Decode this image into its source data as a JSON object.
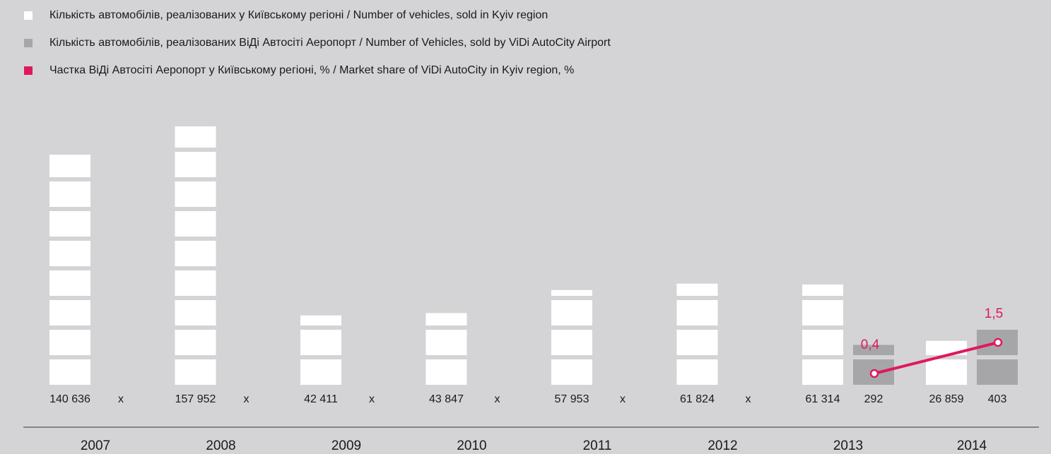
{
  "chart_data": {
    "type": "bar",
    "categories": [
      "2007",
      "2008",
      "2009",
      "2010",
      "2011",
      "2012",
      "2013",
      "2014"
    ],
    "series": [
      {
        "name": "Кількість автомобілів, реалізованих у Київському регіоні / Number of vehicles, sold in Kyiv region",
        "color": "#ffffff",
        "values": [
          140636,
          157952,
          42411,
          43847,
          57953,
          61824,
          61314,
          26859
        ],
        "value_labels": [
          "140 636",
          "157 952",
          "42 411",
          "43 847",
          "57 953",
          "61 824",
          "61 314",
          "26 859"
        ]
      },
      {
        "name": "Кількість автомобілів, реалізованих ВіДі Автосіті Аеропорт / Number of Vehicles, sold by ViDi AutoCity Airport",
        "color": "#a6a6a8",
        "values": [
          null,
          null,
          null,
          null,
          null,
          null,
          292,
          403
        ],
        "value_labels": [
          "x",
          "x",
          "x",
          "x",
          "x",
          "x",
          "292",
          "403"
        ]
      },
      {
        "name": "Частка ВіДі Автосіті Аеропорт у Київському регіоні, % / Market share  of ViDi AutoCity in Kyiv region, %",
        "color": "#e0185c",
        "type": "line",
        "values": [
          null,
          null,
          null,
          null,
          null,
          null,
          0.4,
          1.5
        ],
        "value_labels": [
          null,
          null,
          null,
          null,
          null,
          null,
          "0,4",
          "1,5"
        ]
      }
    ]
  }
}
